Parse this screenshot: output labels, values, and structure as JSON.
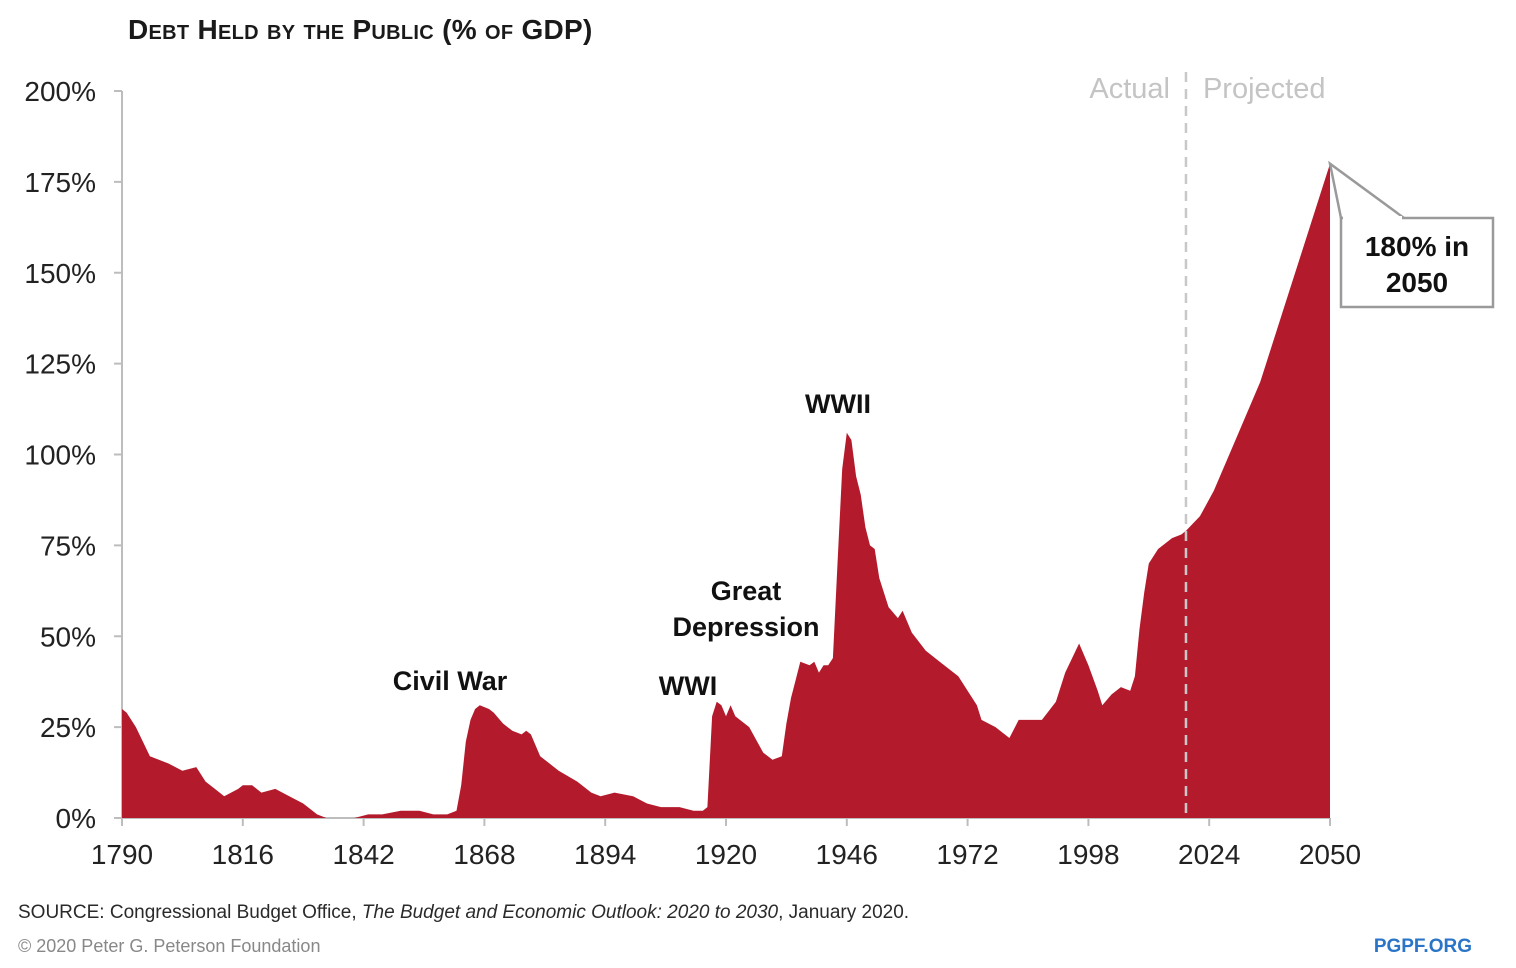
{
  "chart_data": {
    "type": "area",
    "title": "Debt Held by the Public (% of GDP)",
    "xlabel": "",
    "ylabel": "",
    "xlim": [
      1790,
      2050
    ],
    "ylim": [
      0,
      200
    ],
    "x_ticks": [
      "1790",
      "1816",
      "1842",
      "1868",
      "1894",
      "1920",
      "1946",
      "1972",
      "1998",
      "2024",
      "2050"
    ],
    "y_ticks": [
      "0%",
      "25%",
      "50%",
      "75%",
      "100%",
      "125%",
      "150%",
      "175%",
      "200%"
    ],
    "grid": false,
    "divider_year": 2019,
    "divider_labels": {
      "left": "Actual",
      "right": "Projected"
    },
    "annotations": {
      "civil_war": "Civil War",
      "wwi": "WWI",
      "great_depression_line1": "Great",
      "great_depression_line2": "Depression",
      "wwii": "WWII",
      "callout_line1": "180% in",
      "callout_line2": "2050"
    },
    "series": [
      {
        "color": "#b31b2c",
        "x": [
          1790,
          1791,
          1793,
          1796,
          1800,
          1803,
          1806,
          1808,
          1810,
          1812,
          1815,
          1816,
          1818,
          1820,
          1823,
          1826,
          1829,
          1832,
          1834,
          1835,
          1838,
          1840,
          1843,
          1846,
          1850,
          1854,
          1857,
          1860,
          1862,
          1863,
          1864,
          1865,
          1866,
          1867,
          1869,
          1870,
          1872,
          1874,
          1876,
          1877,
          1878,
          1880,
          1884,
          1888,
          1891,
          1893,
          1896,
          1900,
          1903,
          1906,
          1910,
          1913,
          1915,
          1916,
          1917,
          1918,
          1919,
          1920,
          1921,
          1922,
          1925,
          1928,
          1930,
          1932,
          1933,
          1934,
          1935,
          1936,
          1938,
          1939,
          1940,
          1941,
          1942,
          1943,
          1944,
          1945,
          1946,
          1947,
          1948,
          1949,
          1950,
          1951,
          1952,
          1953,
          1955,
          1957,
          1958,
          1960,
          1963,
          1966,
          1970,
          1974,
          1975,
          1978,
          1979,
          1981,
          1983,
          1985,
          1988,
          1991,
          1993,
          1996,
          1998,
          2000,
          2001,
          2003,
          2005,
          2007,
          2008,
          2009,
          2010,
          2011,
          2013,
          2015,
          2016,
          2018,
          2019,
          2022,
          2025,
          2030,
          2035,
          2040,
          2045,
          2050
        ],
        "values": [
          30,
          29,
          25,
          17,
          15,
          13,
          14,
          10,
          8,
          6,
          8,
          9,
          9,
          7,
          8,
          6,
          4,
          1,
          0,
          0,
          0,
          0,
          1,
          1,
          2,
          2,
          1,
          1,
          2,
          9,
          21,
          27,
          30,
          31,
          30,
          29,
          26,
          24,
          23,
          24,
          23,
          17,
          13,
          10,
          7,
          6,
          7,
          6,
          4,
          3,
          3,
          2,
          2,
          3,
          28,
          32,
          31,
          28,
          31,
          28,
          25,
          18,
          16,
          17,
          26,
          33,
          38,
          43,
          42,
          43,
          40,
          42,
          42,
          44,
          70,
          96,
          106,
          104,
          94,
          89,
          80,
          75,
          74,
          66,
          58,
          55,
          57,
          51,
          46,
          43,
          39,
          31,
          27,
          25,
          24,
          22,
          27,
          27,
          27,
          32,
          40,
          48,
          42,
          35,
          31,
          34,
          36,
          35,
          39,
          52,
          62,
          70,
          74,
          76,
          77,
          78,
          79,
          83,
          90,
          105,
          120,
          140,
          160,
          180
        ]
      }
    ]
  },
  "footer": {
    "source_prefix": "SOURCE: Congressional Budget Office, ",
    "source_title": "The Budget and Economic Outlook: 2020 to 2030",
    "source_suffix": ", January 2020.",
    "copyright": "© 2020 Peter G. Peterson Foundation",
    "site": "PGPF.ORG"
  }
}
